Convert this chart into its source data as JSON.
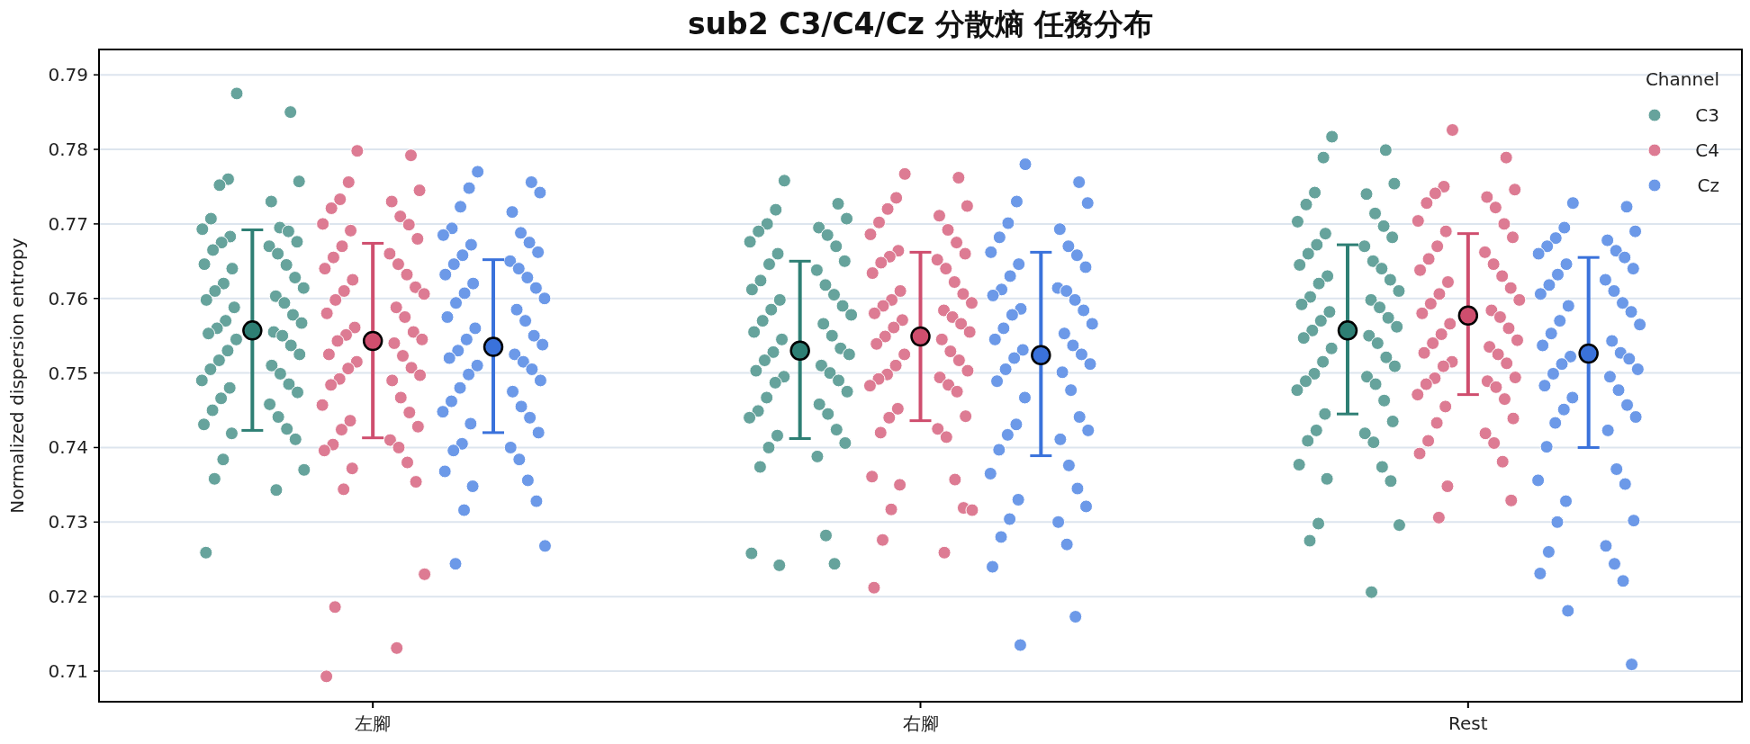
{
  "chart_data": {
    "type": "scatter",
    "title": "sub2 C3/C4/Cz 分散熵 任務分布",
    "ylabel": "Normalized dispersion entropy",
    "legend_title": "Channel",
    "legend": "top right",
    "grid": "y",
    "marker": "circle",
    "categories": [
      "左腳",
      "右腳",
      "Rest"
    ],
    "ylim": [
      0.7059,
      0.7934
    ],
    "yticks": [
      0.71,
      0.72,
      0.73,
      0.74,
      0.75,
      0.76,
      0.77,
      0.78,
      0.79
    ],
    "series": [
      {
        "name": "C3",
        "color": "#66a39c",
        "x": [
          "左腳",
          "左腳",
          "左腳",
          "左腳",
          "左腳",
          "左腳",
          "左腳",
          "左腳",
          "左腳",
          "左腳",
          "左腳",
          "左腳",
          "左腳",
          "左腳",
          "左腳",
          "左腳",
          "左腳",
          "左腳",
          "左腳",
          "左腳",
          "左腳",
          "左腳",
          "左腳",
          "左腳",
          "左腳",
          "左腳",
          "左腳",
          "左腳",
          "左腳",
          "左腳",
          "左腳",
          "左腳",
          "左腳",
          "左腳",
          "左腳",
          "左腳",
          "左腳",
          "左腳",
          "左腳",
          "左腳",
          "左腳",
          "左腳",
          "左腳",
          "左腳",
          "左腳",
          "左腳",
          "左腳",
          "左腳",
          "左腳",
          "左腳",
          "左腳",
          "左腳",
          "左腳",
          "左腳",
          "左腳",
          "左腳",
          "左腳",
          "左腳",
          "左腳",
          "右腳",
          "右腳",
          "右腳",
          "右腳",
          "右腳",
          "右腳",
          "右腳",
          "右腳",
          "右腳",
          "右腳",
          "右腳",
          "右腳",
          "右腳",
          "右腳",
          "右腳",
          "右腳",
          "右腳",
          "右腳",
          "右腳",
          "右腳",
          "右腳",
          "右腳",
          "右腳",
          "右腳",
          "右腳",
          "右腳",
          "右腳",
          "右腳",
          "右腳",
          "右腳",
          "右腳",
          "右腳",
          "右腳",
          "右腳",
          "右腳",
          "右腳",
          "右腳",
          "右腳",
          "右腳",
          "右腳",
          "右腳",
          "右腳",
          "右腳",
          "右腳",
          "右腳",
          "右腳",
          "右腳",
          "右腳",
          "右腳",
          "右腳",
          "右腳",
          "右腳",
          "右腳",
          "Rest",
          "Rest",
          "Rest",
          "Rest",
          "Rest",
          "Rest",
          "Rest",
          "Rest",
          "Rest",
          "Rest",
          "Rest",
          "Rest",
          "Rest",
          "Rest",
          "Rest",
          "Rest",
          "Rest",
          "Rest",
          "Rest",
          "Rest",
          "Rest",
          "Rest",
          "Rest",
          "Rest",
          "Rest",
          "Rest",
          "Rest",
          "Rest",
          "Rest",
          "Rest",
          "Rest",
          "Rest",
          "Rest",
          "Rest",
          "Rest",
          "Rest",
          "Rest",
          "Rest",
          "Rest",
          "Rest",
          "Rest",
          "Rest",
          "Rest",
          "Rest",
          "Rest",
          "Rest",
          "Rest",
          "Rest",
          "Rest",
          "Rest",
          "Rest",
          "Rest",
          "Rest",
          "Rest",
          "Rest",
          "Rest",
          "Rest",
          "Rest"
        ],
        "values": [
          0.7875,
          0.785,
          0.776,
          0.7757,
          0.7752,
          0.773,
          0.7707,
          0.7695,
          0.7693,
          0.769,
          0.7683,
          0.7676,
          0.7675,
          0.767,
          0.7665,
          0.766,
          0.7646,
          0.7645,
          0.764,
          0.7628,
          0.762,
          0.7614,
          0.761,
          0.7603,
          0.7598,
          0.7594,
          0.7588,
          0.7578,
          0.757,
          0.7567,
          0.756,
          0.7555,
          0.7553,
          0.755,
          0.7545,
          0.7537,
          0.753,
          0.7525,
          0.7517,
          0.751,
          0.7505,
          0.7499,
          0.749,
          0.7485,
          0.748,
          0.7474,
          0.7466,
          0.7458,
          0.745,
          0.7441,
          0.7431,
          0.7425,
          0.7419,
          0.7411,
          0.7384,
          0.737,
          0.7358,
          0.7343,
          0.7259,
          0.7758,
          0.7727,
          0.7719,
          0.7707,
          0.77,
          0.7695,
          0.769,
          0.7685,
          0.7676,
          0.767,
          0.766,
          0.765,
          0.7646,
          0.7638,
          0.7624,
          0.7618,
          0.7612,
          0.7605,
          0.7598,
          0.759,
          0.7585,
          0.7578,
          0.757,
          0.7566,
          0.7555,
          0.755,
          0.7545,
          0.7533,
          0.7528,
          0.7525,
          0.7517,
          0.751,
          0.7503,
          0.75,
          0.7495,
          0.749,
          0.7487,
          0.7475,
          0.7467,
          0.7458,
          0.7449,
          0.7445,
          0.744,
          0.7424,
          0.7416,
          0.7406,
          0.74,
          0.7388,
          0.7374,
          0.7282,
          0.7258,
          0.7244,
          0.7242,
          0.7817,
          0.7799,
          0.7789,
          0.7754,
          0.7742,
          0.774,
          0.7726,
          0.7714,
          0.7703,
          0.7697,
          0.7687,
          0.7682,
          0.7672,
          0.767,
          0.766,
          0.765,
          0.7645,
          0.764,
          0.763,
          0.7625,
          0.762,
          0.761,
          0.7602,
          0.7598,
          0.7592,
          0.7588,
          0.7582,
          0.7574,
          0.757,
          0.7562,
          0.7557,
          0.755,
          0.7547,
          0.754,
          0.7533,
          0.7521,
          0.7515,
          0.7509,
          0.7499,
          0.7495,
          0.7489,
          0.7485,
          0.7477,
          0.7463,
          0.7445,
          0.7435,
          0.7423,
          0.7419,
          0.7409,
          0.7407,
          0.7377,
          0.7374,
          0.7358,
          0.7355,
          0.7298,
          0.7296,
          0.7275,
          0.7206
        ]
      },
      {
        "name": "C4",
        "color": "#dd7b93",
        "x": [
          "左腳",
          "左腳",
          "左腳",
          "左腳",
          "左腳",
          "左腳",
          "左腳",
          "左腳",
          "左腳",
          "左腳",
          "左腳",
          "左腳",
          "左腳",
          "左腳",
          "左腳",
          "左腳",
          "左腳",
          "左腳",
          "左腳",
          "左腳",
          "左腳",
          "左腳",
          "左腳",
          "左腳",
          "左腳",
          "左腳",
          "左腳",
          "左腳",
          "左腳",
          "左腳",
          "左腳",
          "左腳",
          "左腳",
          "左腳",
          "左腳",
          "左腳",
          "左腳",
          "左腳",
          "左腳",
          "左腳",
          "左腳",
          "左腳",
          "左腳",
          "左腳",
          "左腳",
          "左腳",
          "左腳",
          "左腳",
          "左腳",
          "左腳",
          "左腳",
          "左腳",
          "左腳",
          "左腳",
          "左腳",
          "左腳",
          "左腳",
          "左腳",
          "左腳",
          "右腳",
          "右腳",
          "右腳",
          "右腳",
          "右腳",
          "右腳",
          "右腳",
          "右腳",
          "右腳",
          "右腳",
          "右腳",
          "右腳",
          "右腳",
          "右腳",
          "右腳",
          "右腳",
          "右腳",
          "右腳",
          "右腳",
          "右腳",
          "右腳",
          "右腳",
          "右腳",
          "右腳",
          "右腳",
          "右腳",
          "右腳",
          "右腳",
          "右腳",
          "右腳",
          "右腳",
          "右腳",
          "右腳",
          "右腳",
          "右腳",
          "右腳",
          "右腳",
          "右腳",
          "右腳",
          "右腳",
          "右腳",
          "右腳",
          "右腳",
          "右腳",
          "右腳",
          "右腳",
          "右腳",
          "右腳",
          "右腳",
          "右腳",
          "右腳",
          "右腳",
          "右腳",
          "右腳",
          "右腳",
          "右腳",
          "右腳",
          "右腳",
          "右腳",
          "Rest",
          "Rest",
          "Rest",
          "Rest",
          "Rest",
          "Rest",
          "Rest",
          "Rest",
          "Rest",
          "Rest",
          "Rest",
          "Rest",
          "Rest",
          "Rest",
          "Rest",
          "Rest",
          "Rest",
          "Rest",
          "Rest",
          "Rest",
          "Rest",
          "Rest",
          "Rest",
          "Rest",
          "Rest",
          "Rest",
          "Rest",
          "Rest",
          "Rest",
          "Rest",
          "Rest",
          "Rest",
          "Rest",
          "Rest",
          "Rest",
          "Rest",
          "Rest",
          "Rest",
          "Rest",
          "Rest",
          "Rest",
          "Rest",
          "Rest",
          "Rest",
          "Rest",
          "Rest",
          "Rest",
          "Rest",
          "Rest",
          "Rest",
          "Rest",
          "Rest",
          "Rest",
          "Rest",
          "Rest"
        ],
        "values": [
          0.7798,
          0.7792,
          0.7756,
          0.7745,
          0.7733,
          0.773,
          0.7721,
          0.771,
          0.77,
          0.7699,
          0.7691,
          0.768,
          0.767,
          0.766,
          0.7655,
          0.7646,
          0.764,
          0.7632,
          0.7625,
          0.7615,
          0.761,
          0.7606,
          0.7598,
          0.7588,
          0.758,
          0.7575,
          0.7561,
          0.7555,
          0.7551,
          0.7545,
          0.7543,
          0.754,
          0.7525,
          0.7523,
          0.7515,
          0.7507,
          0.7506,
          0.7497,
          0.7492,
          0.749,
          0.7484,
          0.7467,
          0.7457,
          0.7447,
          0.7436,
          0.7428,
          0.7424,
          0.741,
          0.7404,
          0.74,
          0.7396,
          0.738,
          0.7372,
          0.7354,
          0.7344,
          0.723,
          0.7186,
          0.7131,
          0.7093,
          0.7767,
          0.7762,
          0.7735,
          0.7724,
          0.772,
          0.7711,
          0.7702,
          0.7692,
          0.7686,
          0.7675,
          0.7664,
          0.766,
          0.7656,
          0.7652,
          0.7648,
          0.764,
          0.7634,
          0.7622,
          0.761,
          0.7606,
          0.7598,
          0.7594,
          0.759,
          0.7584,
          0.758,
          0.7575,
          0.7571,
          0.7566,
          0.7561,
          0.7555,
          0.7549,
          0.7545,
          0.7539,
          0.7529,
          0.7525,
          0.7517,
          0.751,
          0.7503,
          0.7498,
          0.7494,
          0.7492,
          0.7484,
          0.7483,
          0.7475,
          0.7452,
          0.7442,
          0.744,
          0.7425,
          0.742,
          0.7414,
          0.7361,
          0.7357,
          0.735,
          0.7319,
          0.7317,
          0.7316,
          0.7276,
          0.7259,
          0.7212,
          0.7826,
          0.7789,
          0.775,
          0.7746,
          0.7741,
          0.7736,
          0.7728,
          0.7722,
          0.7704,
          0.77,
          0.769,
          0.7682,
          0.767,
          0.7662,
          0.7653,
          0.7646,
          0.7638,
          0.763,
          0.7622,
          0.7614,
          0.7606,
          0.7598,
          0.7593,
          0.7584,
          0.758,
          0.7575,
          0.7566,
          0.756,
          0.7552,
          0.7544,
          0.754,
          0.7535,
          0.7527,
          0.7525,
          0.7515,
          0.7513,
          0.7509,
          0.7494,
          0.7493,
          0.7489,
          0.7485,
          0.7481,
          0.7471,
          0.7465,
          0.7455,
          0.7439,
          0.7433,
          0.7419,
          0.7409,
          0.7406,
          0.7392,
          0.7381,
          0.7348,
          0.7329,
          0.7306
        ]
      },
      {
        "name": "Cz",
        "color": "#6c99e8",
        "x": [
          "左腳",
          "左腳",
          "左腳",
          "左腳",
          "左腳",
          "左腳",
          "左腳",
          "左腳",
          "左腳",
          "左腳",
          "左腳",
          "左腳",
          "左腳",
          "左腳",
          "左腳",
          "左腳",
          "左腳",
          "左腳",
          "左腳",
          "左腳",
          "左腳",
          "左腳",
          "左腳",
          "左腳",
          "左腳",
          "左腳",
          "左腳",
          "左腳",
          "左腳",
          "左腳",
          "左腳",
          "左腳",
          "左腳",
          "左腳",
          "左腳",
          "左腳",
          "左腳",
          "左腳",
          "左腳",
          "左腳",
          "左腳",
          "左腳",
          "左腳",
          "左腳",
          "左腳",
          "左腳",
          "左腳",
          "左腳",
          "左腳",
          "左腳",
          "左腳",
          "左腳",
          "左腳",
          "左腳",
          "左腳",
          "左腳",
          "左腳",
          "右腳",
          "右腳",
          "右腳",
          "右腳",
          "右腳",
          "右腳",
          "右腳",
          "右腳",
          "右腳",
          "右腳",
          "右腳",
          "右腳",
          "右腳",
          "右腳",
          "右腳",
          "右腳",
          "右腳",
          "右腳",
          "右腳",
          "右腳",
          "右腳",
          "右腳",
          "右腳",
          "右腳",
          "右腳",
          "右腳",
          "右腳",
          "右腳",
          "右腳",
          "右腳",
          "右腳",
          "右腳",
          "右腳",
          "右腳",
          "右腳",
          "右腳",
          "右腳",
          "右腳",
          "右腳",
          "右腳",
          "右腳",
          "右腳",
          "右腳",
          "右腳",
          "右腳",
          "右腳",
          "右腳",
          "右腳",
          "右腳",
          "右腳",
          "右腳",
          "右腳",
          "右腳",
          "Rest",
          "Rest",
          "Rest",
          "Rest",
          "Rest",
          "Rest",
          "Rest",
          "Rest",
          "Rest",
          "Rest",
          "Rest",
          "Rest",
          "Rest",
          "Rest",
          "Rest",
          "Rest",
          "Rest",
          "Rest",
          "Rest",
          "Rest",
          "Rest",
          "Rest",
          "Rest",
          "Rest",
          "Rest",
          "Rest",
          "Rest",
          "Rest",
          "Rest",
          "Rest",
          "Rest",
          "Rest",
          "Rest",
          "Rest",
          "Rest",
          "Rest",
          "Rest",
          "Rest",
          "Rest",
          "Rest",
          "Rest",
          "Rest",
          "Rest",
          "Rest",
          "Rest",
          "Rest",
          "Rest",
          "Rest",
          "Rest",
          "Rest",
          "Rest",
          "Rest",
          "Rest",
          "Rest"
        ],
        "values": [
          0.777,
          0.7756,
          0.7748,
          0.7742,
          0.7723,
          0.7716,
          0.7694,
          0.7688,
          0.7685,
          0.7675,
          0.7672,
          0.7662,
          0.7658,
          0.765,
          0.7646,
          0.764,
          0.7632,
          0.7628,
          0.762,
          0.7614,
          0.7607,
          0.76,
          0.7594,
          0.7585,
          0.7575,
          0.757,
          0.756,
          0.755,
          0.7545,
          0.7538,
          0.753,
          0.7525,
          0.752,
          0.7515,
          0.751,
          0.7505,
          0.7498,
          0.749,
          0.748,
          0.7475,
          0.7462,
          0.7455,
          0.7448,
          0.744,
          0.7432,
          0.742,
          0.7405,
          0.74,
          0.7396,
          0.7384,
          0.7368,
          0.7356,
          0.7348,
          0.7328,
          0.7316,
          0.7268,
          0.7244,
          0.778,
          0.7756,
          0.773,
          0.7728,
          0.7701,
          0.7693,
          0.7682,
          0.767,
          0.7662,
          0.7658,
          0.7646,
          0.7642,
          0.763,
          0.7614,
          0.7612,
          0.761,
          0.7604,
          0.7598,
          0.7586,
          0.7584,
          0.7578,
          0.7566,
          0.756,
          0.7553,
          0.7545,
          0.7537,
          0.7531,
          0.7525,
          0.752,
          0.7512,
          0.7505,
          0.7501,
          0.7489,
          0.7477,
          0.7467,
          0.7441,
          0.7431,
          0.7423,
          0.7417,
          0.7411,
          0.7397,
          0.7376,
          0.7365,
          0.7345,
          0.733,
          0.7321,
          0.7304,
          0.73,
          0.728,
          0.727,
          0.724,
          0.7173,
          0.7135,
          0.7728,
          0.7723,
          0.7695,
          0.769,
          0.7681,
          0.7678,
          0.767,
          0.7664,
          0.766,
          0.7655,
          0.7646,
          0.764,
          0.7632,
          0.7625,
          0.7618,
          0.761,
          0.7606,
          0.7594,
          0.759,
          0.7582,
          0.757,
          0.7565,
          0.7553,
          0.7543,
          0.7537,
          0.7527,
          0.7522,
          0.7519,
          0.7512,
          0.7505,
          0.7499,
          0.7495,
          0.7483,
          0.7477,
          0.7467,
          0.7457,
          0.7451,
          0.7441,
          0.7433,
          0.7423,
          0.7401,
          0.7371,
          0.7356,
          0.7351,
          0.7328,
          0.7302,
          0.73,
          0.7268,
          0.726,
          0.7244,
          0.7231,
          0.7221,
          0.7181,
          0.7109
        ]
      },
      {
        "color": "#2e7f74",
        "x": [
          "左腳",
          "右腳",
          "Rest"
        ],
        "values": [
          0.7557,
          0.753,
          0.7557
        ],
        "errors": [
          [
            0.7423,
            0.7692
          ],
          [
            0.7412,
            0.765
          ],
          [
            0.7445,
            0.7672
          ]
        ]
      },
      {
        "color": "#cf4e6e",
        "x": [
          "左腳",
          "右腳",
          "Rest"
        ],
        "values": [
          0.7543,
          0.7549,
          0.7577
        ],
        "errors": [
          [
            0.7413,
            0.7674
          ],
          [
            0.7436,
            0.7662
          ],
          [
            0.7471,
            0.7687
          ]
        ]
      },
      {
        "color": "#3a72db",
        "x": [
          "左腳",
          "右腳",
          "Rest"
        ],
        "values": [
          0.7535,
          0.7524,
          0.7526
        ],
        "errors": [
          [
            0.742,
            0.7652
          ],
          [
            0.7389,
            0.7662
          ],
          [
            0.74,
            0.7655
          ]
        ]
      }
    ]
  }
}
